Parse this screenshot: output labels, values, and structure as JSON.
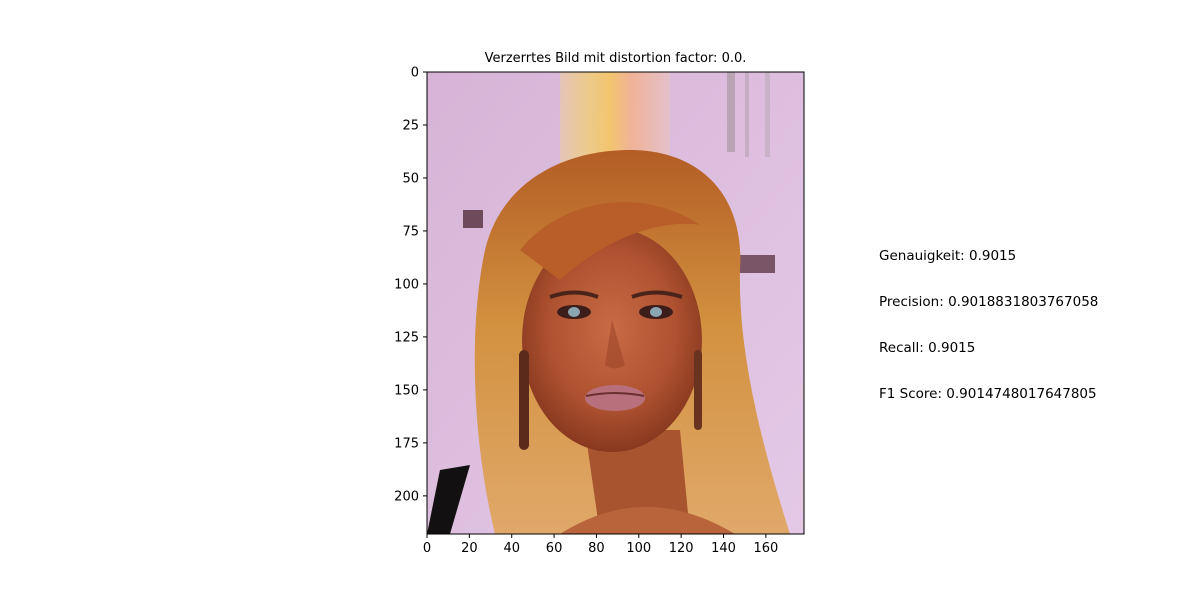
{
  "chart_data": {
    "type": "image",
    "title": "Verzerrtes Bild mit distortion factor: 0.0.",
    "xlabel": "",
    "ylabel": "",
    "xlim": [
      0,
      178
    ],
    "ylim": [
      218,
      0
    ],
    "x_ticks": [
      0,
      20,
      40,
      60,
      80,
      100,
      120,
      140,
      160
    ],
    "y_ticks": [
      0,
      25,
      50,
      75,
      100,
      125,
      150,
      175,
      200
    ],
    "image_subject": "portrait photo of a woman with long blonde hair against a pink backdrop",
    "colors": {
      "background": "#dcbcde",
      "hair": "#b8612a",
      "skin": "#b5582e",
      "lips": "#b86a76"
    }
  },
  "metrics": {
    "accuracy": "Genauigkeit: 0.9015",
    "precision": "Precision: 0.9018831803767058",
    "recall": "Recall: 0.9015",
    "f1": "F1 Score: 0.9014748017647805"
  }
}
